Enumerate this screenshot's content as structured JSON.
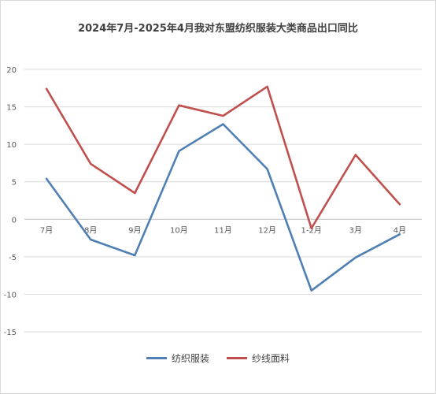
{
  "chart_data": {
    "type": "line",
    "title": "2024年7月-2025年4月我对东盟纺织服装大类商品出口同比",
    "categories": [
      "7月",
      "8月",
      "9月",
      "10月",
      "11月",
      "12月",
      "1-2月",
      "3月",
      "4月"
    ],
    "series": [
      {
        "name": "纺织服装",
        "color": "#4f7fb3",
        "values": [
          5.4,
          -2.7,
          -4.8,
          9.1,
          12.7,
          6.7,
          -9.5,
          -5.1,
          -2.0
        ]
      },
      {
        "name": "纱线面料",
        "color": "#c0504d",
        "values": [
          17.4,
          7.4,
          3.5,
          15.2,
          13.8,
          17.7,
          -1.2,
          8.6,
          2.0
        ]
      }
    ],
    "ylim": [
      -15,
      20
    ],
    "yticks": [
      20,
      15,
      10,
      5,
      0,
      -5,
      -10,
      -15
    ],
    "grid": true,
    "legend_position": "bottom"
  }
}
